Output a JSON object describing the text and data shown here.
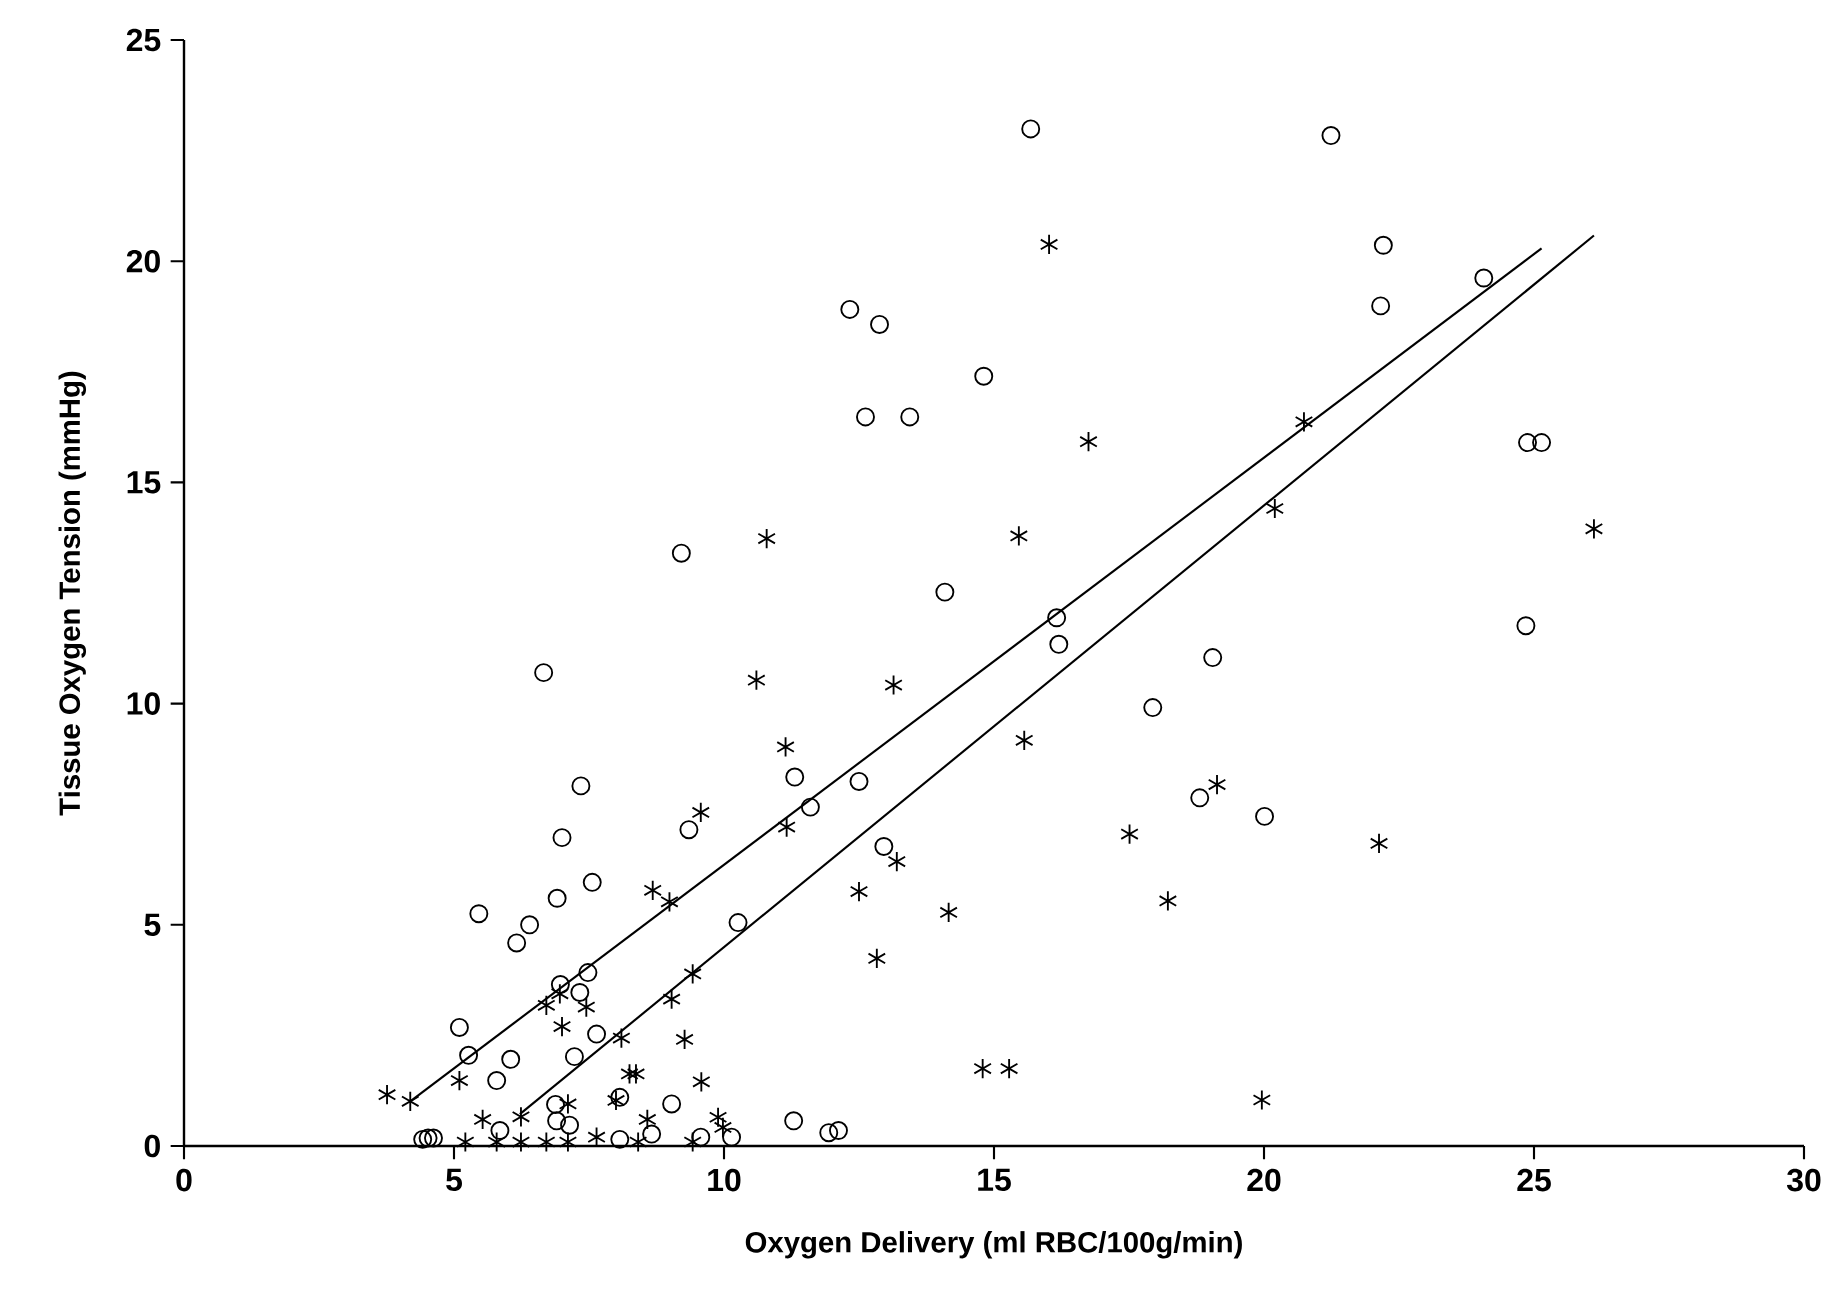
{
  "chart_data": {
    "type": "scatter",
    "xlabel": "Oxygen Delivery (ml RBC/100g/min)",
    "ylabel": "Tissue Oxygen Tension (mmHg)",
    "xlim": [
      0,
      30
    ],
    "xticks": [
      0,
      5,
      10,
      15,
      20,
      25,
      30
    ],
    "ylim": [
      0,
      25
    ],
    "yticks": [
      0,
      5,
      10,
      15,
      20,
      25
    ],
    "series": [
      {
        "marker": "circle",
        "color": "#000000",
        "x": [
          6.66,
          7.35,
          9.35,
          7.0,
          7.56,
          6.91,
          5.46,
          6.4,
          6.16,
          10.26,
          7.48,
          6.97,
          7.33,
          5.1,
          7.64,
          5.27,
          6.05,
          7.23,
          5.79,
          9.03,
          8.07,
          6.88,
          4.42,
          4.52,
          4.62,
          5.85,
          6.9,
          7.14,
          8.07,
          8.66,
          9.57,
          10.14,
          11.31,
          12.5,
          11.6,
          12.96,
          11.29,
          11.94,
          12.12,
          15.68,
          21.24,
          22.21,
          22.16,
          24.07,
          12.33,
          12.88,
          14.81,
          12.62,
          13.44,
          24.88,
          25.14,
          14.09,
          16.16,
          16.2,
          19.05,
          24.85,
          17.94,
          18.81,
          20.01,
          9.21
        ],
        "values": [
          10.7,
          8.14,
          7.15,
          6.97,
          5.96,
          5.6,
          5.25,
          5.0,
          4.59,
          5.05,
          3.92,
          3.65,
          3.47,
          2.68,
          2.53,
          2.05,
          1.96,
          2.02,
          1.48,
          0.95,
          1.1,
          0.94,
          0.15,
          0.18,
          0.18,
          0.35,
          0.57,
          0.47,
          0.15,
          0.27,
          0.2,
          0.2,
          8.34,
          8.24,
          7.66,
          6.77,
          0.57,
          0.3,
          0.35,
          22.99,
          22.84,
          20.36,
          18.99,
          19.62,
          18.91,
          18.57,
          17.4,
          16.48,
          16.48,
          15.9,
          15.9,
          12.52,
          11.94,
          11.34,
          11.04,
          11.76,
          9.91,
          7.87,
          7.45,
          13.4
        ]
      },
      {
        "marker": "cross",
        "color": "#000000",
        "x": [
          3.76,
          4.19,
          5.1,
          5.21,
          5.53,
          5.79,
          6.24,
          6.24,
          6.71,
          6.96,
          7.45,
          7.0,
          7.11,
          6.71,
          7.11,
          7.64,
          8.1,
          8.25,
          8.37,
          8.0,
          8.41,
          8.58,
          8.68,
          8.99,
          9.03,
          9.42,
          9.27,
          9.58,
          9.57,
          9.89,
          9.98,
          9.42,
          10.6,
          13.14,
          11.14,
          15.56,
          11.16,
          13.2,
          12.5,
          14.16,
          12.83,
          14.79,
          15.28,
          16.02,
          16.75,
          20.74,
          20.2,
          15.46,
          26.11,
          10.79,
          19.13,
          17.51,
          22.13,
          18.22,
          19.96
        ],
        "values": [
          1.16,
          1.01,
          1.48,
          0.09,
          0.6,
          0.09,
          0.66,
          0.09,
          3.18,
          3.44,
          3.14,
          2.7,
          0.95,
          0.09,
          0.09,
          0.2,
          2.44,
          1.63,
          1.63,
          1.03,
          0.09,
          0.6,
          5.78,
          5.52,
          3.32,
          3.89,
          2.41,
          1.45,
          7.54,
          0.65,
          0.42,
          0.09,
          10.53,
          10.42,
          9.02,
          9.17,
          7.21,
          6.43,
          5.75,
          5.28,
          4.24,
          1.75,
          1.75,
          20.38,
          15.92,
          16.37,
          14.41,
          13.79,
          13.95,
          13.73,
          8.17,
          7.05,
          6.84,
          5.54,
          1.04
        ]
      },
      {
        "type": "line",
        "marker": "none",
        "color": "#000000",
        "x": [
          4.19,
          25.14
        ],
        "values": [
          1.01,
          20.29
        ]
      },
      {
        "type": "line",
        "marker": "none",
        "color": "#000000",
        "x": [
          6.22,
          26.11
        ],
        "values": [
          0.72,
          20.58
        ]
      }
    ]
  }
}
